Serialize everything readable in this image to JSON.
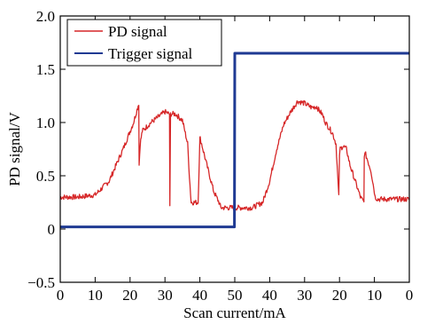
{
  "chart_data": {
    "type": "line",
    "xlabel": "Scan current/mA",
    "ylabel": "PD signal/V",
    "x_ticks": [
      "0",
      "10",
      "20",
      "30",
      "40",
      "50",
      "40",
      "30",
      "20",
      "10",
      "0"
    ],
    "y_ticks": [
      "−0.5",
      "0",
      "0.5",
      "1.0",
      "1.5",
      "2.0"
    ],
    "xlim": [
      0,
      100
    ],
    "ylim": [
      -0.5,
      2.0
    ],
    "grid": false,
    "legend_position": "top-left",
    "series": [
      {
        "name": "PD signal",
        "color": "#d62728",
        "x": [
          0,
          5,
          10,
          14,
          18,
          21,
          22.5,
          22.6,
          22.9,
          23.5,
          26,
          28,
          30,
          31.3,
          31.4,
          31.6,
          33,
          35,
          36.5,
          37,
          37.5,
          38,
          39.5,
          40,
          40.1,
          40.5,
          42,
          44,
          45.5,
          46,
          50,
          55,
          58,
          60,
          62,
          64,
          66,
          68,
          70,
          72,
          73.5,
          74,
          75,
          76,
          77,
          78,
          79,
          79.8,
          80,
          80.2,
          81,
          82,
          83,
          85,
          86,
          87,
          87.1,
          87.5,
          89,
          90,
          90.2,
          91,
          93,
          95,
          97,
          100
        ],
        "y": [
          0.3,
          0.3,
          0.32,
          0.45,
          0.75,
          1.0,
          1.18,
          0.6,
          0.8,
          0.92,
          1.0,
          1.05,
          1.1,
          1.08,
          0.2,
          1.08,
          1.08,
          1.02,
          0.8,
          0.5,
          0.25,
          0.25,
          0.25,
          0.85,
          0.85,
          0.8,
          0.6,
          0.35,
          0.25,
          0.2,
          0.2,
          0.2,
          0.25,
          0.45,
          0.75,
          0.98,
          1.1,
          1.2,
          1.18,
          1.14,
          1.15,
          1.12,
          1.08,
          1.0,
          0.95,
          0.9,
          0.8,
          0.3,
          0.7,
          0.75,
          0.78,
          0.75,
          0.6,
          0.4,
          0.3,
          0.25,
          0.7,
          0.7,
          0.55,
          0.35,
          0.3,
          0.28,
          0.28,
          0.28,
          0.28,
          0.28
        ]
      },
      {
        "name": "Trigger signal",
        "color": "#1f3a93",
        "x": [
          0,
          49.9,
          50,
          100
        ],
        "y": [
          0.02,
          0.02,
          1.65,
          1.65
        ]
      }
    ]
  }
}
